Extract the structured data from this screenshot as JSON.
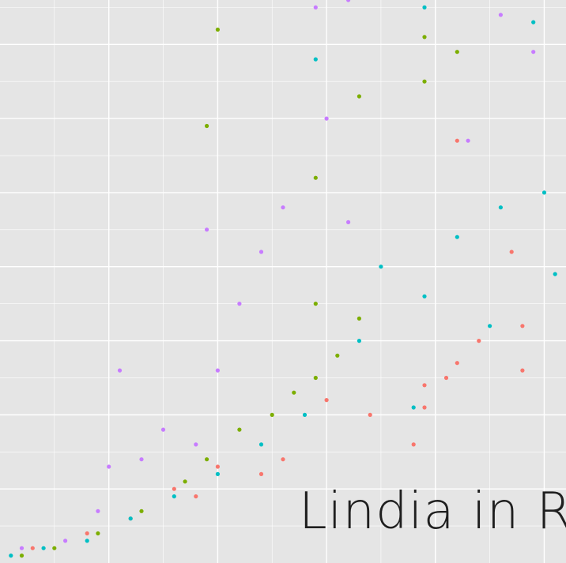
{
  "overlay_text": "Lindia in R",
  "chart_data": {
    "type": "scatter",
    "title": "",
    "xlabel": "",
    "ylabel": "",
    "grid": true,
    "axis_ticks_visible": false,
    "background": "#e5e5e5",
    "gridline_color": "#ffffff",
    "legend": "none",
    "xlim": [
      0.0,
      5.2
    ],
    "ylim": [
      0.0,
      7.6
    ],
    "series": [
      {
        "color": "#f8766d",
        "points": [
          [
            0.3,
            0.2
          ],
          [
            0.8,
            0.4
          ],
          [
            1.2,
            0.6
          ],
          [
            1.6,
            1.0
          ],
          [
            1.8,
            0.9
          ],
          [
            2.0,
            1.3
          ],
          [
            2.4,
            1.2
          ],
          [
            2.6,
            1.4
          ],
          [
            3.0,
            2.2
          ],
          [
            3.4,
            2.0
          ],
          [
            3.8,
            1.6
          ],
          [
            3.9,
            2.1
          ],
          [
            4.1,
            2.5
          ],
          [
            4.2,
            2.7
          ],
          [
            4.4,
            3.0
          ],
          [
            4.8,
            3.2
          ],
          [
            4.8,
            2.6
          ],
          [
            4.7,
            4.2
          ],
          [
            4.2,
            5.7
          ],
          [
            3.9,
            2.4
          ]
        ]
      },
      {
        "color": "#7cae00",
        "points": [
          [
            0.2,
            0.1
          ],
          [
            0.5,
            0.2
          ],
          [
            0.9,
            0.4
          ],
          [
            1.3,
            0.7
          ],
          [
            1.7,
            1.1
          ],
          [
            1.9,
            1.4
          ],
          [
            2.2,
            1.8
          ],
          [
            2.5,
            2.0
          ],
          [
            2.7,
            2.3
          ],
          [
            2.9,
            2.5
          ],
          [
            3.1,
            2.8
          ],
          [
            3.3,
            3.3
          ],
          [
            2.9,
            3.5
          ],
          [
            2.9,
            5.2
          ],
          [
            3.3,
            6.3
          ],
          [
            3.9,
            6.5
          ],
          [
            4.2,
            6.9
          ],
          [
            3.9,
            7.1
          ],
          [
            1.9,
            5.9
          ],
          [
            2.0,
            7.2
          ]
        ]
      },
      {
        "color": "#00bfc4",
        "points": [
          [
            0.1,
            0.1
          ],
          [
            0.4,
            0.2
          ],
          [
            0.8,
            0.3
          ],
          [
            1.2,
            0.6
          ],
          [
            1.6,
            0.9
          ],
          [
            2.0,
            1.2
          ],
          [
            2.4,
            1.6
          ],
          [
            2.8,
            2.0
          ],
          [
            3.3,
            3.0
          ],
          [
            3.9,
            3.6
          ],
          [
            4.2,
            4.4
          ],
          [
            4.6,
            4.8
          ],
          [
            5.0,
            5.0
          ],
          [
            5.1,
            3.9
          ],
          [
            4.5,
            3.2
          ],
          [
            3.8,
            2.1
          ],
          [
            3.5,
            4.0
          ],
          [
            2.9,
            6.8
          ],
          [
            3.9,
            7.5
          ],
          [
            4.9,
            7.3
          ]
        ]
      },
      {
        "color": "#c77cff",
        "points": [
          [
            0.2,
            0.2
          ],
          [
            0.6,
            0.3
          ],
          [
            0.9,
            0.7
          ],
          [
            1.0,
            1.3
          ],
          [
            1.3,
            1.4
          ],
          [
            1.5,
            1.8
          ],
          [
            1.8,
            1.6
          ],
          [
            2.0,
            2.6
          ],
          [
            2.2,
            3.5
          ],
          [
            2.4,
            4.2
          ],
          [
            2.6,
            4.8
          ],
          [
            1.9,
            4.5
          ],
          [
            2.9,
            7.5
          ],
          [
            3.2,
            7.6
          ],
          [
            3.0,
            6.0
          ],
          [
            3.2,
            4.6
          ],
          [
            4.3,
            5.7
          ],
          [
            4.9,
            6.9
          ],
          [
            4.6,
            7.4
          ],
          [
            1.1,
            2.6
          ]
        ]
      }
    ]
  }
}
